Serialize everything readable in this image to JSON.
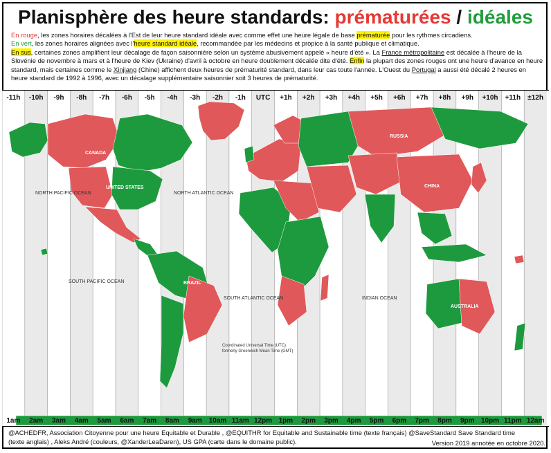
{
  "title": {
    "prefix": "Planisphère des heure standards: ",
    "premature": "prématurées",
    "slash": " / ",
    "ideal": "idéales"
  },
  "intro": {
    "line1": {
      "lead": "En rouge",
      "text_a": ", les zones horaires décalées à l'Est de leur heure standard idéale avec comme effet une heure légale de base ",
      "hl": "prématurée",
      "text_b": " pour les rythmes circadiens."
    },
    "line2": {
      "lead": "En vert",
      "text_a": ", les zones horaires alignées avec l'",
      "hl": "heure standard idéale",
      "text_b": ", recommandée par les médecins et propice à la santé publique et climatique."
    },
    "line3": {
      "lead": "En sus",
      "text_a": ", certaines zones amplifient leur décalage de façon saisonnière selon un système abusivement appelé « heure d'été ». La ",
      "u1": "France métropolitaine",
      "text_b": " est décalée à l'heure de la Slovénie de novembre à mars et à l'heure de Kiev (Ukraine) d'avril à octobre en heure doublement décalée dite d'été. ",
      "lead2": "Enfin",
      "text_c": " la plupart des zones rouges ont une heure d'avance en heure standard, mais certaines comme le ",
      "u2": "Xinjiang",
      "text_d": " (Chine) affichent deux heures de prématurité standard, dans leur cas toute l'année. L'Ouest du ",
      "u3": "Portugal",
      "text_e": " a aussi été décalé 2 heures en heure standard de 1992 à 1996, avec un décalage supplémentaire saisonnier soit 3 heures de prématurité."
    }
  },
  "map": {
    "colors": {
      "premature": "#e0585a",
      "ideal": "#1e9a3e",
      "ocean": "#ffffff",
      "stripe": "#d9d9d9"
    },
    "offsets_top": [
      "-11h",
      "-10h",
      "-9h",
      "-8h",
      "-7h",
      "-6h",
      "-5h",
      "-4h",
      "-3h",
      "-2h",
      "-1h",
      "UTC",
      "+1h",
      "+2h",
      "+3h",
      "+4h",
      "+5h",
      "+6h",
      "+7h",
      "+8h",
      "+9h",
      "+10h",
      "+11h",
      "±12h"
    ],
    "local_times_bottom": [
      "1am",
      "2am",
      "3am",
      "4am",
      "5am",
      "6am",
      "7am",
      "8am",
      "9am",
      "10am",
      "11am",
      "12pm",
      "1pm",
      "2pm",
      "3pm",
      "4pm",
      "5pm",
      "6pm",
      "7pm",
      "8pm",
      "9pm",
      "10pm",
      "11pm",
      "12am"
    ],
    "labels": {
      "canada": "CANADA",
      "usa": "UNITED STATES",
      "russia": "RUSSIA",
      "china": "CHINA",
      "brazil": "BRAZIL",
      "australia": "AUSTRALIA",
      "north_pacific": "NORTH PACIFIC OCEAN",
      "north_atlantic": "NORTH ATLANTIC OCEAN",
      "south_pacific": "SOUTH PACIFIC OCEAN",
      "south_atlantic": "SOUTH ATLANTIC OCEAN",
      "indian": "INDIAN OCEAN",
      "utc_note_1": "Coordinated Universal Time (UTC)",
      "utc_note_2": "formerly Greenwich Mean Time (GMT)"
    }
  },
  "credits": {
    "line1": "@ACHEDFR, Association Citoyenne pour une heure Equitable et Durable , @EQUITHR for Equitable and Sustainable time (texte français) @SaveStandard Save Standard time",
    "line2": "(texte anglais) , Aleks André (couleurs, @XanderLeaDaren), US GPA (carte dans le domaine public).",
    "version": "Version 2019 annotée en octobre 2020."
  }
}
